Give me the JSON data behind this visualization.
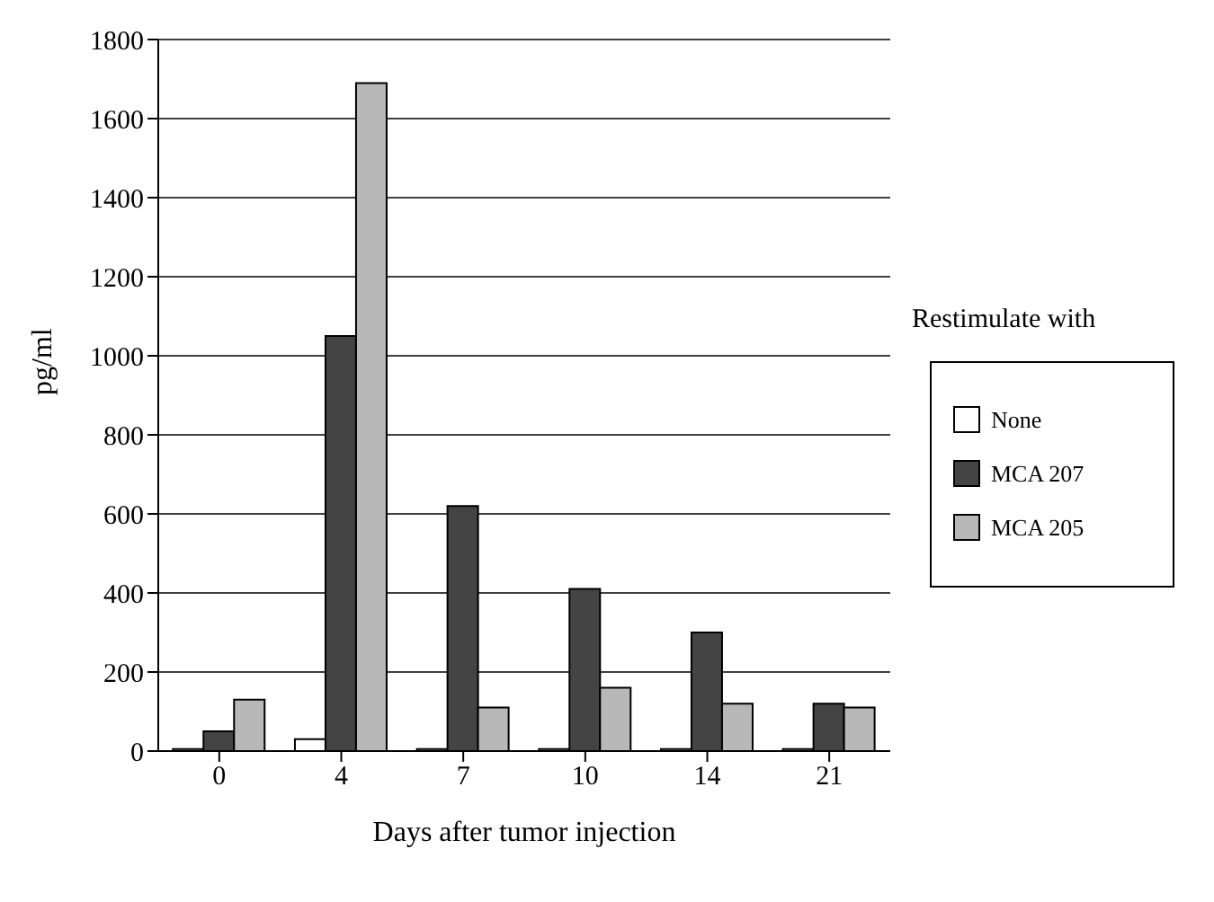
{
  "chart_data": {
    "type": "bar",
    "xlabel": "Days after tumor injection",
    "ylabel": "pg/ml",
    "legend_title": "Restimulate with",
    "categories": [
      "0",
      "4",
      "7",
      "10",
      "14",
      "21"
    ],
    "series": [
      {
        "name": "None",
        "color": "#ffffff",
        "values": [
          5,
          30,
          5,
          5,
          5,
          5
        ]
      },
      {
        "name": "MCA 207",
        "color": "#444444",
        "values": [
          50,
          1050,
          620,
          410,
          300,
          120
        ]
      },
      {
        "name": "MCA 205",
        "color": "#b8b8b8",
        "values": [
          130,
          1690,
          110,
          160,
          120,
          110
        ]
      }
    ],
    "ylim": [
      0,
      1800
    ],
    "yticks": [
      0,
      200,
      400,
      600,
      800,
      1000,
      1200,
      1400,
      1600,
      1800
    ],
    "grid": "y",
    "legend": "right"
  }
}
